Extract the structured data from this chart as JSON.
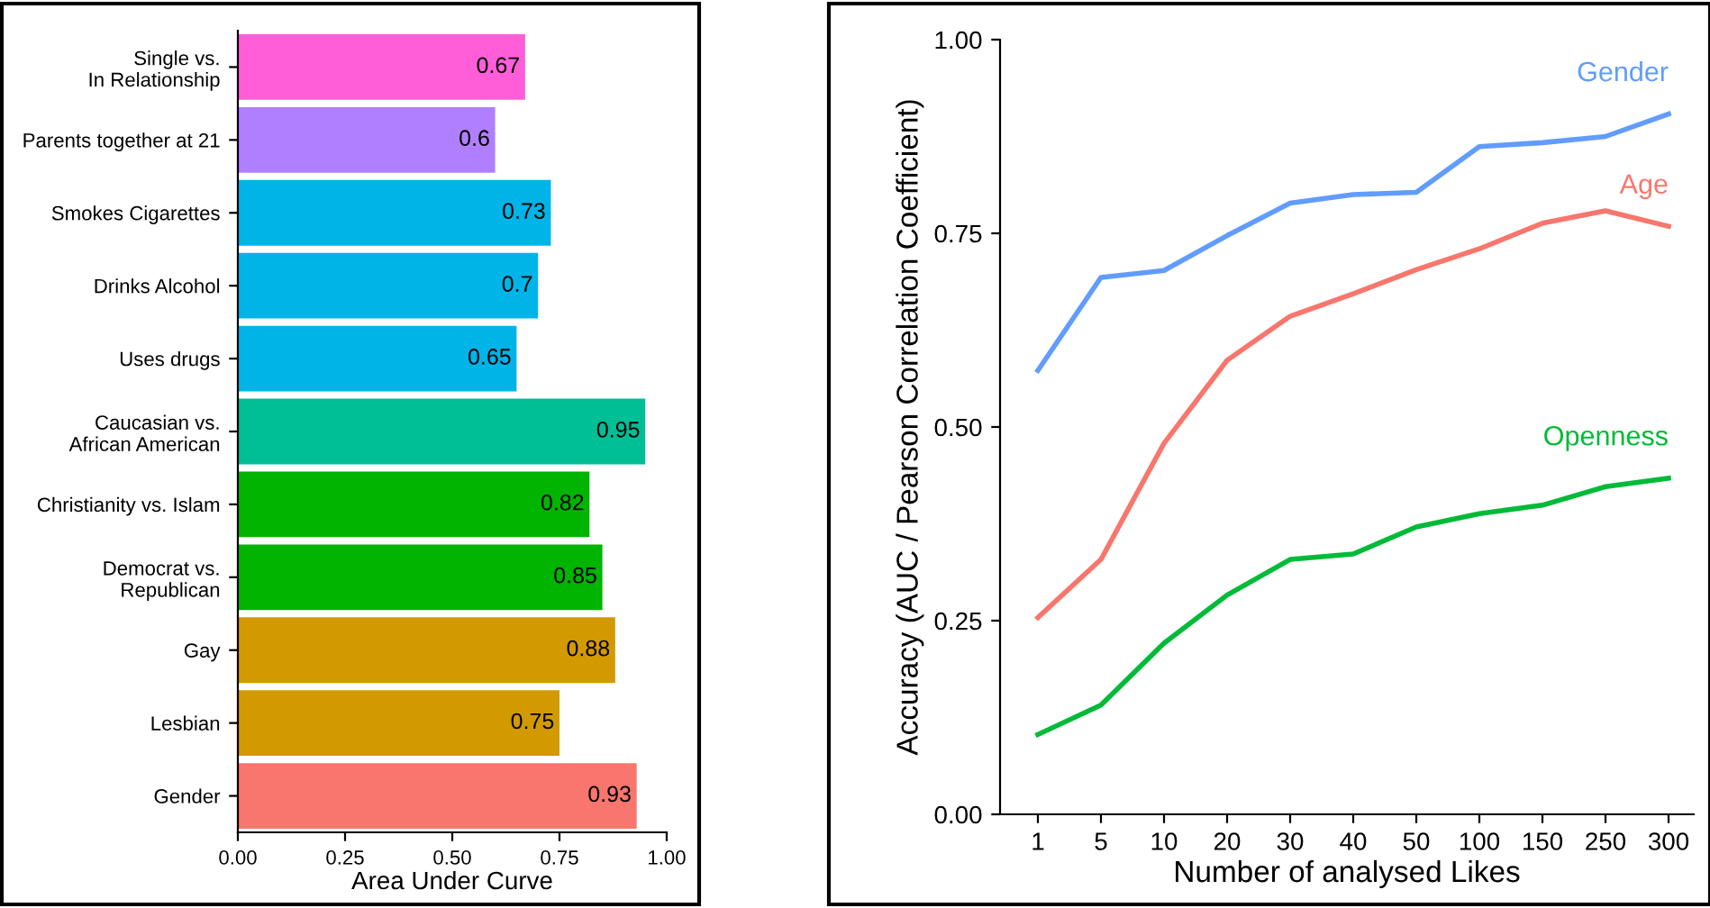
{
  "chart_data": [
    {
      "type": "bar",
      "orientation": "horizontal",
      "xlabel": "Area Under Curve",
      "categories": [
        "Single vs.\nIn Relationship",
        "Parents together at 21",
        "Smokes Cigarettes",
        "Drinks Alcohol",
        "Uses drugs",
        "Caucasian vs.\nAfrican American",
        "Christianity vs. Islam",
        "Democrat vs.\nRepublican",
        "Gay",
        "Lesbian",
        "Gender"
      ],
      "values": [
        0.67,
        0.6,
        0.73,
        0.7,
        0.65,
        0.95,
        0.82,
        0.85,
        0.88,
        0.75,
        0.93
      ],
      "colors": [
        "#ff5ed8",
        "#b07fff",
        "#00b4e8",
        "#00b4e8",
        "#00b4e8",
        "#00be96",
        "#00b400",
        "#00b400",
        "#d39a00",
        "#d39a00",
        "#f8766d"
      ],
      "xlim": [
        0,
        1
      ],
      "xticks": [
        {
          "value": 0,
          "label": "0.00"
        },
        {
          "value": 0.25,
          "label": "0.25"
        },
        {
          "value": 0.5,
          "label": "0.50"
        },
        {
          "value": 0.75,
          "label": "0.75"
        },
        {
          "value": 1,
          "label": "1.00"
        }
      ],
      "data_labels": true,
      "grid": false
    },
    {
      "type": "line",
      "xlabel": "Number of analysed Likes",
      "ylabel": "Accuracy (AUC / Pearson Correlation Coefficient)",
      "categories": [
        "1",
        "5",
        "10",
        "20",
        "30",
        "40",
        "50",
        "100",
        "150",
        "250",
        "300"
      ],
      "series": [
        {
          "name": "Gender",
          "color": "#619cff",
          "values": [
            0.573,
            0.693,
            0.702,
            0.747,
            0.789,
            0.8,
            0.803,
            0.862,
            0.867,
            0.875,
            0.904
          ]
        },
        {
          "name": "Age",
          "color": "#f8766d",
          "values": [
            0.254,
            0.329,
            0.479,
            0.586,
            0.643,
            0.672,
            0.703,
            0.73,
            0.763,
            0.779,
            0.759
          ]
        },
        {
          "name": "Openness",
          "color": "#00ba38",
          "values": [
            0.103,
            0.141,
            0.221,
            0.283,
            0.329,
            0.336,
            0.371,
            0.388,
            0.399,
            0.423,
            0.434
          ]
        }
      ],
      "ylim": [
        0,
        1
      ],
      "yticks": [
        {
          "value": 0,
          "label": "0.00"
        },
        {
          "value": 0.25,
          "label": "0.25"
        },
        {
          "value": 0.5,
          "label": "0.50"
        },
        {
          "value": 0.75,
          "label": "0.75"
        },
        {
          "value": 1,
          "label": "1.00"
        }
      ],
      "grid": false,
      "legend": false,
      "marker": "none",
      "line_style": "solid"
    }
  ]
}
